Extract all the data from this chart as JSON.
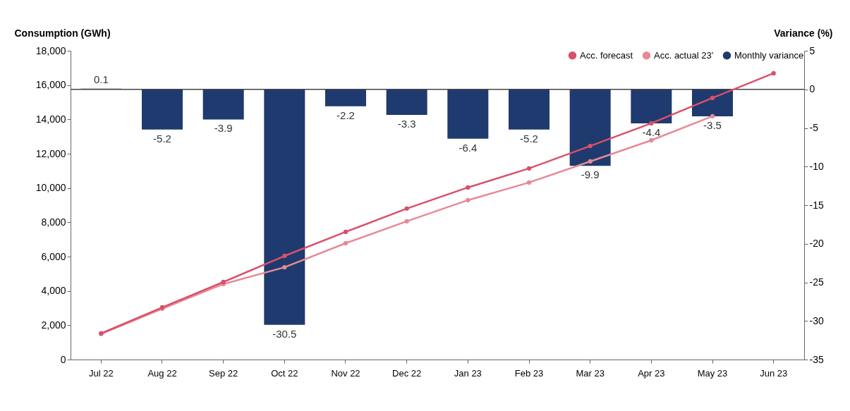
{
  "chart_data": {
    "type": "line",
    "ylabel": "Consumption (GWh)",
    "y2label": "Variance (%)",
    "categories": [
      "Jul 22",
      "Aug 22",
      "Sep 22",
      "Oct 22",
      "Nov 22",
      "Dec 22",
      "Jan 23",
      "Feb 23",
      "Mar 23",
      "Apr 23",
      "May 23",
      "Jun 23"
    ],
    "series": [
      {
        "name": "Acc. forecast",
        "color": "#d9506a",
        "values": [
          1520,
          3040,
          4520,
          6040,
          7440,
          8800,
          10030,
          11140,
          12450,
          13770,
          15250,
          16690
        ]
      },
      {
        "name": "Acc. actual 23'",
        "color": "#e68a95",
        "values": [
          1500,
          2960,
          4400,
          5380,
          6780,
          8060,
          9290,
          10320,
          11550,
          12780,
          14180,
          null
        ]
      },
      {
        "name": "Monthly variance",
        "type": "bar",
        "axis": "y2",
        "color": "#1f3a6e",
        "values": [
          0.1,
          -5.2,
          -3.9,
          -30.5,
          -2.2,
          -3.3,
          -6.4,
          -5.2,
          -9.9,
          -4.4,
          -3.5,
          null
        ],
        "value_labels": [
          "0.1",
          "-5.2",
          "-3.9",
          "-30.5",
          "-2.2",
          "-3.3",
          "-6.4",
          "-5.2",
          "-9.9",
          "-4.4",
          "-3.5",
          null
        ]
      }
    ],
    "ylim": [
      0,
      18000
    ],
    "yticks": [
      0,
      {
        "value": 2000,
        "label": "2,000"
      },
      {
        "value": 4000,
        "label": "4,000"
      },
      {
        "value": 6000,
        "label": "6,000"
      },
      {
        "value": 8000,
        "label": "8,000"
      },
      {
        "value": 10000,
        "label": "10,000"
      },
      {
        "value": 12000,
        "label": "12,000"
      },
      {
        "value": 14000,
        "label": "14,000"
      },
      {
        "value": 16000,
        "label": "16,000"
      },
      {
        "value": 18000,
        "label": "18,000"
      }
    ],
    "y2lim": [
      -35,
      5
    ],
    "y2ticks": [
      -35,
      -30,
      -25,
      -20,
      -15,
      -10,
      -5,
      0,
      5
    ],
    "ref_lines": [
      {
        "axis": "y2",
        "value": 0,
        "color": "#444444"
      }
    ],
    "marker": "circle",
    "line_style": "solid",
    "grid": false,
    "legend": "top right"
  }
}
